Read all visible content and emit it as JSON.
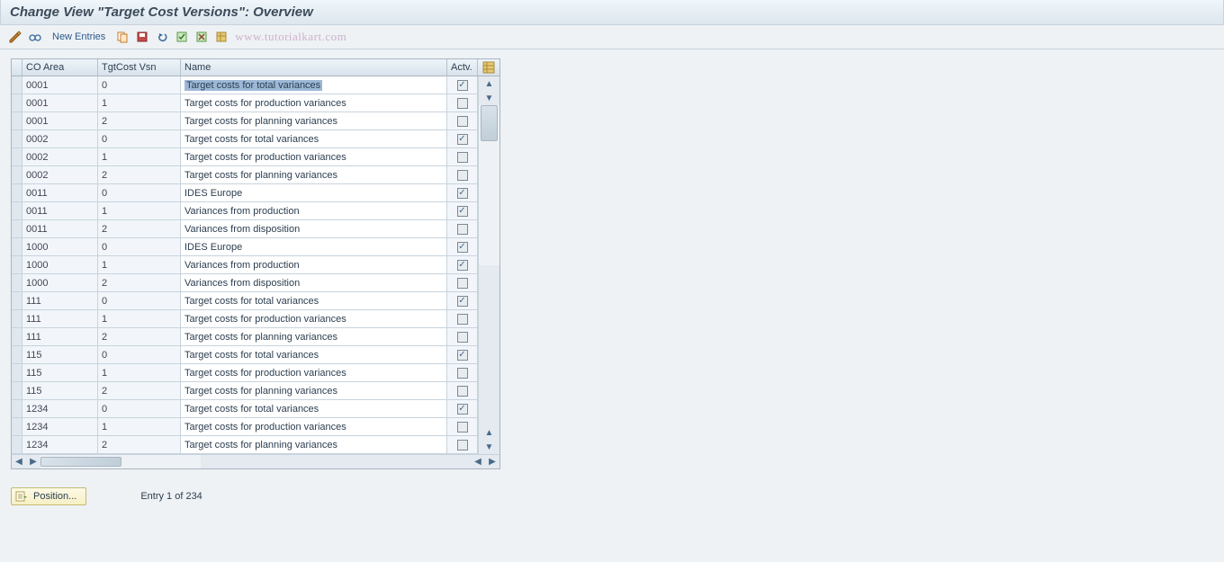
{
  "title": "Change View \"Target Cost Versions\": Overview",
  "toolbar": {
    "new_entries": "New Entries",
    "watermark": "www.tutorialkart.com"
  },
  "columns": {
    "co_area": "CO Area",
    "tgt_cost_vsn": "TgtCost Vsn",
    "name": "Name",
    "actv": "Actv."
  },
  "rows": [
    {
      "co": "0001",
      "ver": "0",
      "name": "Target costs for total variances",
      "active": true,
      "selected": true
    },
    {
      "co": "0001",
      "ver": "1",
      "name": "Target costs for production variances",
      "active": false,
      "selected": false
    },
    {
      "co": "0001",
      "ver": "2",
      "name": "Target costs for planning variances",
      "active": false,
      "selected": false
    },
    {
      "co": "0002",
      "ver": "0",
      "name": "Target costs for total variances",
      "active": true,
      "selected": false
    },
    {
      "co": "0002",
      "ver": "1",
      "name": "Target costs for production variances",
      "active": false,
      "selected": false
    },
    {
      "co": "0002",
      "ver": "2",
      "name": "Target costs for planning variances",
      "active": false,
      "selected": false
    },
    {
      "co": "0011",
      "ver": "0",
      "name": "IDES Europe",
      "active": true,
      "selected": false
    },
    {
      "co": "0011",
      "ver": "1",
      "name": "Variances from production",
      "active": true,
      "selected": false
    },
    {
      "co": "0011",
      "ver": "2",
      "name": "Variances from disposition",
      "active": false,
      "selected": false
    },
    {
      "co": "1000",
      "ver": "0",
      "name": "IDES Europe",
      "active": true,
      "selected": false
    },
    {
      "co": "1000",
      "ver": "1",
      "name": "Variances from production",
      "active": true,
      "selected": false
    },
    {
      "co": "1000",
      "ver": "2",
      "name": "Variances from disposition",
      "active": false,
      "selected": false
    },
    {
      "co": "111",
      "ver": "0",
      "name": "Target costs for total variances",
      "active": true,
      "selected": false
    },
    {
      "co": "111",
      "ver": "1",
      "name": "Target costs for production variances",
      "active": false,
      "selected": false
    },
    {
      "co": "111",
      "ver": "2",
      "name": "Target costs for planning variances",
      "active": false,
      "selected": false
    },
    {
      "co": "115",
      "ver": "0",
      "name": "Target costs for total variances",
      "active": true,
      "selected": false
    },
    {
      "co": "115",
      "ver": "1",
      "name": "Target costs for production variances",
      "active": false,
      "selected": false
    },
    {
      "co": "115",
      "ver": "2",
      "name": "Target costs for planning variances",
      "active": false,
      "selected": false
    },
    {
      "co": "1234",
      "ver": "0",
      "name": "Target costs for total variances",
      "active": true,
      "selected": false
    },
    {
      "co": "1234",
      "ver": "1",
      "name": "Target costs for production variances",
      "active": false,
      "selected": false
    },
    {
      "co": "1234",
      "ver": "2",
      "name": "Target costs for planning variances",
      "active": false,
      "selected": false
    }
  ],
  "position_btn": "Position...",
  "entry_info": "Entry 1 of 234",
  "colors": {
    "header_grad_top": "#f0f6fa",
    "header_grad_bot": "#dce6ee",
    "border": "#aab5c0",
    "row_bg_readonly": "#f2f6fa",
    "row_bg_editable": "#ffffff",
    "selection_highlight": "#9cb8d6"
  }
}
